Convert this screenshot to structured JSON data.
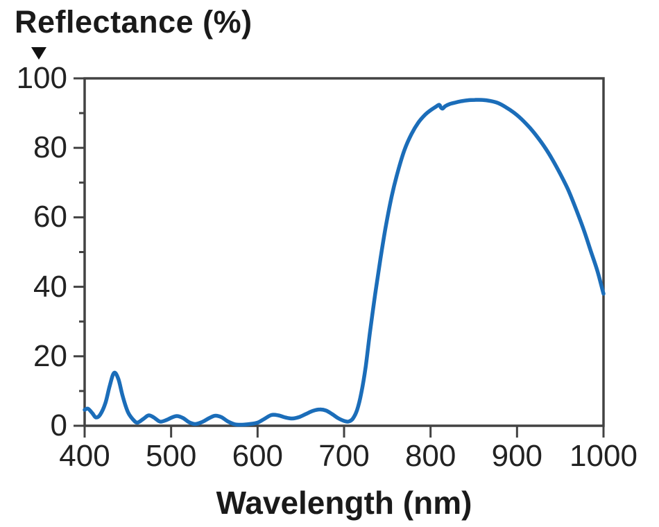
{
  "chart": {
    "y_axis_title": "Reflectance (%)",
    "x_axis_title": "Wavelength (nm)",
    "colors": {
      "line": "#1b6db9",
      "axis": "#424242",
      "text": "#222222",
      "title_text": "#1a1a1a",
      "background": "#ffffff"
    }
  },
  "chart_data": {
    "type": "line",
    "title": "",
    "xlabel": "Wavelength (nm)",
    "ylabel": "Reflectance (%)",
    "xlim": [
      400,
      1000
    ],
    "ylim": [
      0,
      100
    ],
    "x_ticks": [
      400,
      500,
      600,
      700,
      800,
      900,
      1000
    ],
    "y_ticks": [
      0,
      20,
      40,
      60,
      80,
      100
    ],
    "y_minor_ticks": [
      10,
      30,
      50,
      70,
      90
    ],
    "grid": false,
    "legend": null,
    "series": [
      {
        "name": "reflectance",
        "color": "#1b6db9",
        "points": [
          [
            400,
            4.6
          ],
          [
            404,
            4.9
          ],
          [
            409,
            3.6
          ],
          [
            413,
            2.4
          ],
          [
            418,
            3.2
          ],
          [
            424,
            6.5
          ],
          [
            429,
            11.5
          ],
          [
            434,
            15.2
          ],
          [
            439,
            13.5
          ],
          [
            444,
            8.5
          ],
          [
            450,
            4.0
          ],
          [
            456,
            1.8
          ],
          [
            461,
            0.9
          ],
          [
            468,
            2.0
          ],
          [
            474,
            3.0
          ],
          [
            480,
            2.4
          ],
          [
            487,
            1.2
          ],
          [
            494,
            1.6
          ],
          [
            501,
            2.4
          ],
          [
            507,
            2.8
          ],
          [
            514,
            2.2
          ],
          [
            521,
            1.0
          ],
          [
            528,
            0.5
          ],
          [
            536,
            1.1
          ],
          [
            544,
            2.2
          ],
          [
            551,
            2.9
          ],
          [
            558,
            2.5
          ],
          [
            566,
            1.2
          ],
          [
            574,
            0.4
          ],
          [
            582,
            0.3
          ],
          [
            591,
            0.5
          ],
          [
            600,
            0.9
          ],
          [
            608,
            2.0
          ],
          [
            616,
            3.1
          ],
          [
            624,
            3.0
          ],
          [
            632,
            2.4
          ],
          [
            640,
            2.1
          ],
          [
            648,
            2.5
          ],
          [
            656,
            3.4
          ],
          [
            664,
            4.3
          ],
          [
            672,
            4.7
          ],
          [
            679,
            4.4
          ],
          [
            686,
            3.4
          ],
          [
            693,
            2.2
          ],
          [
            700,
            1.4
          ],
          [
            705,
            1.2
          ],
          [
            710,
            2.0
          ],
          [
            715,
            4.5
          ],
          [
            720,
            9.5
          ],
          [
            725,
            17.0
          ],
          [
            730,
            27.0
          ],
          [
            736,
            38.0
          ],
          [
            742,
            48.0
          ],
          [
            748,
            57.0
          ],
          [
            755,
            66.0
          ],
          [
            762,
            73.0
          ],
          [
            770,
            79.5
          ],
          [
            778,
            84.0
          ],
          [
            786,
            87.3
          ],
          [
            794,
            89.6
          ],
          [
            801,
            91.0
          ],
          [
            806,
            91.8
          ],
          [
            810,
            92.4
          ],
          [
            812,
            91.6
          ],
          [
            814,
            91.3
          ],
          [
            817,
            92.0
          ],
          [
            822,
            92.6
          ],
          [
            828,
            93.0
          ],
          [
            835,
            93.4
          ],
          [
            843,
            93.7
          ],
          [
            851,
            93.8
          ],
          [
            860,
            93.8
          ],
          [
            869,
            93.5
          ],
          [
            878,
            92.9
          ],
          [
            887,
            91.7
          ],
          [
            896,
            90.2
          ],
          [
            905,
            88.3
          ],
          [
            914,
            86.0
          ],
          [
            923,
            83.3
          ],
          [
            932,
            80.2
          ],
          [
            941,
            76.6
          ],
          [
            950,
            72.5
          ],
          [
            959,
            68.0
          ],
          [
            968,
            62.5
          ],
          [
            977,
            56.5
          ],
          [
            985,
            50.5
          ],
          [
            993,
            44.5
          ],
          [
            1000,
            38.0
          ]
        ]
      }
    ]
  }
}
